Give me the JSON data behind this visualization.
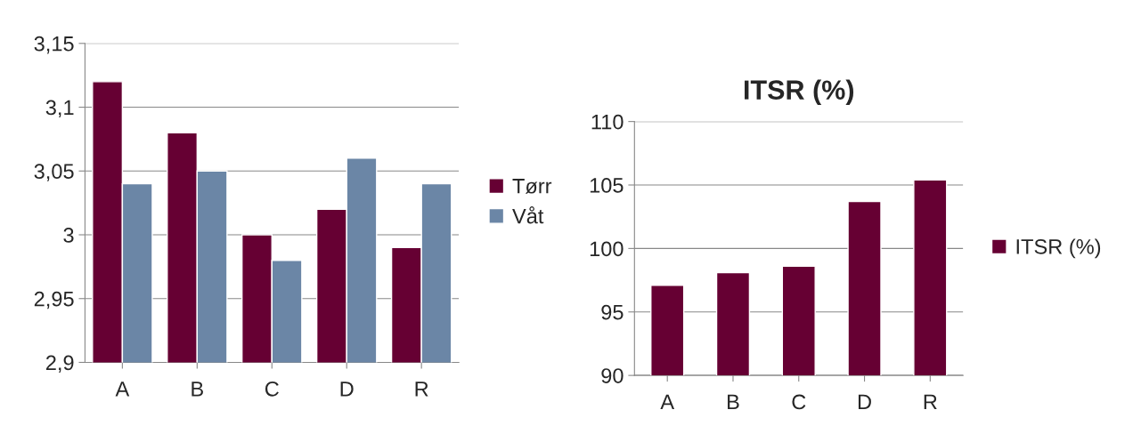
{
  "chart_data": [
    {
      "type": "bar",
      "categories": [
        "A",
        "B",
        "C",
        "D",
        "R"
      ],
      "series": [
        {
          "name": "Tørr",
          "color": "#660033",
          "values": [
            3.12,
            3.08,
            3.0,
            3.02,
            2.99
          ]
        },
        {
          "name": "Våt",
          "color": "#6b86a6",
          "values": [
            3.04,
            3.05,
            2.98,
            3.06,
            3.04
          ]
        }
      ],
      "ylim": [
        2.9,
        3.15
      ],
      "yticks": [
        {
          "value": 2.9,
          "label": "2,9"
        },
        {
          "value": 2.95,
          "label": "2,95"
        },
        3,
        {
          "value": 3.05,
          "label": "3,05"
        },
        {
          "value": 3.1,
          "label": "3,1"
        },
        {
          "value": 3.15,
          "label": "3,15"
        }
      ],
      "grid": "y",
      "legend": "right"
    },
    {
      "type": "bar",
      "title": "ITSR (%)",
      "categories": [
        "A",
        "B",
        "C",
        "D",
        "R"
      ],
      "series": [
        {
          "name": "ITSR (%)",
          "color": "#660033",
          "values": [
            97.1,
            98.1,
            98.6,
            103.7,
            105.4
          ]
        }
      ],
      "ylim": [
        90,
        110
      ],
      "yticks": [
        90,
        95,
        100,
        105,
        110
      ],
      "grid": "y",
      "legend": "right"
    }
  ]
}
